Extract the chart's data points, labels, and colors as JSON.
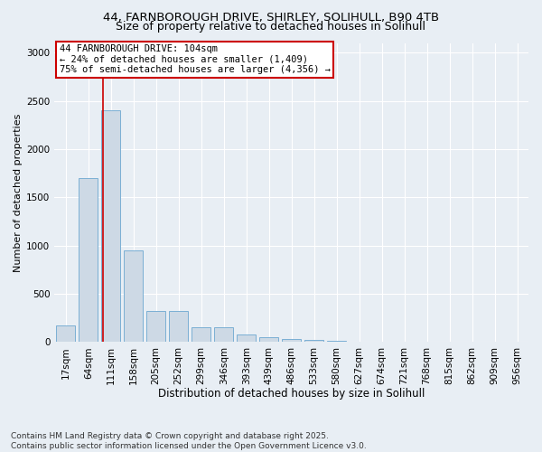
{
  "title_line1": "44, FARNBOROUGH DRIVE, SHIRLEY, SOLIHULL, B90 4TB",
  "title_line2": "Size of property relative to detached houses in Solihull",
  "xlabel": "Distribution of detached houses by size in Solihull",
  "ylabel": "Number of detached properties",
  "categories": [
    "17sqm",
    "64sqm",
    "111sqm",
    "158sqm",
    "205sqm",
    "252sqm",
    "299sqm",
    "346sqm",
    "393sqm",
    "439sqm",
    "486sqm",
    "533sqm",
    "580sqm",
    "627sqm",
    "674sqm",
    "721sqm",
    "768sqm",
    "815sqm",
    "862sqm",
    "909sqm",
    "956sqm"
  ],
  "values": [
    170,
    1700,
    2400,
    950,
    320,
    320,
    150,
    150,
    80,
    50,
    35,
    20,
    15,
    0,
    0,
    0,
    0,
    0,
    0,
    0,
    0
  ],
  "bar_color": "#cdd9e5",
  "bar_edge_color": "#7bafd4",
  "vline_color": "#cc0000",
  "vline_x": 1.67,
  "annotation_text": "44 FARNBOROUGH DRIVE: 104sqm\n← 24% of detached houses are smaller (1,409)\n75% of semi-detached houses are larger (4,356) →",
  "annotation_box_facecolor": "#ffffff",
  "annotation_box_edgecolor": "#cc0000",
  "ylim": [
    0,
    3100
  ],
  "yticks": [
    0,
    500,
    1000,
    1500,
    2000,
    2500,
    3000
  ],
  "bg_color": "#e8eef4",
  "plot_bg_color": "#e8eef4",
  "footnote": "Contains HM Land Registry data © Crown copyright and database right 2025.\nContains public sector information licensed under the Open Government Licence v3.0.",
  "title_fontsize": 9.5,
  "ylabel_fontsize": 8,
  "xlabel_fontsize": 8.5,
  "tick_fontsize": 7.5,
  "annotation_fontsize": 7.5,
  "footnote_fontsize": 6.5
}
